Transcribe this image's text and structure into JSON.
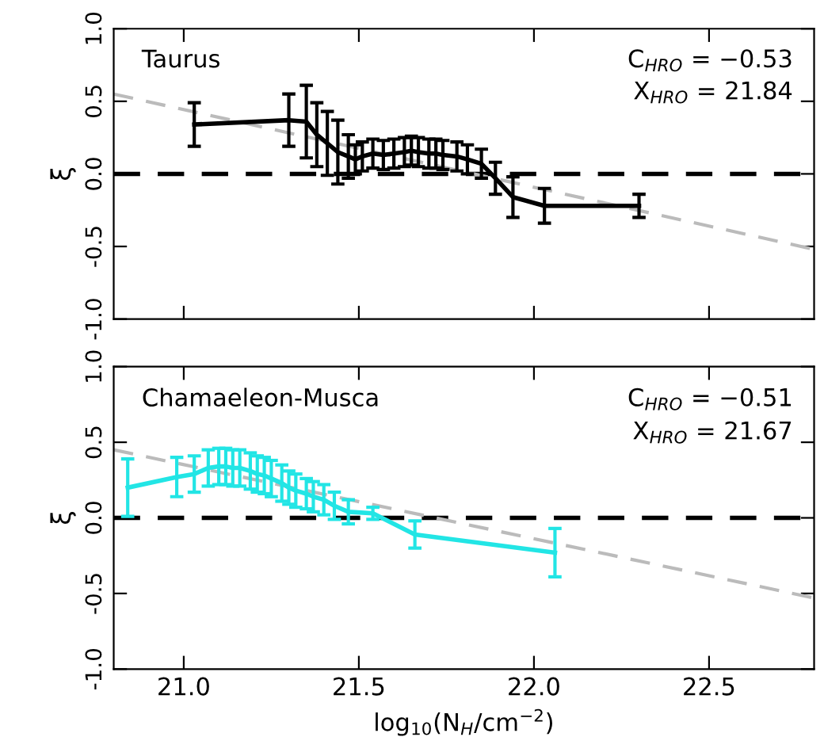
{
  "chart_data": [
    {
      "type": "line",
      "ylabel": "ξ",
      "xlim": [
        20.8,
        22.8
      ],
      "xticks": [
        {
          "value": 21,
          "label": null
        },
        {
          "value": 21.5,
          "label": null
        },
        {
          "value": 22,
          "label": null
        },
        {
          "value": 22.5,
          "label": null
        }
      ],
      "ylim": [
        -1.0,
        1.0
      ],
      "yticks": [
        {
          "value": -1,
          "label": "-1.0"
        },
        {
          "value": -0.5,
          "label": "-0.5"
        },
        {
          "value": 0,
          "label": "0.0"
        },
        {
          "value": 0.5,
          "label": "0.5"
        },
        {
          "value": 1,
          "label": "1.0"
        }
      ],
      "tick_labels": "y",
      "marker": "none",
      "annotations": [
        "Taurus",
        "C$_{HRO}$ = −0.53",
        "X$_{HRO}$ = 21.84"
      ],
      "ref_lines": [
        {
          "axis": "y",
          "value": 0,
          "label": null,
          "color": "#000000",
          "line_style": "dashed"
        }
      ],
      "series": [
        {
          "color": "#000000",
          "x": [
            21.03,
            21.3,
            21.35,
            21.38,
            21.41,
            21.44,
            21.47,
            21.49,
            21.51,
            21.54,
            21.57,
            21.6,
            21.63,
            21.65,
            21.67,
            21.7,
            21.72,
            21.74,
            21.78,
            21.81,
            21.85,
            21.89,
            21.94,
            22.03,
            22.3
          ],
          "values": [
            0.34,
            0.37,
            0.36,
            0.27,
            0.21,
            0.15,
            0.12,
            0.1,
            0.12,
            0.14,
            0.13,
            0.14,
            0.15,
            0.16,
            0.15,
            0.14,
            0.14,
            0.13,
            0.12,
            0.1,
            0.07,
            -0.03,
            -0.16,
            -0.22,
            -0.22
          ],
          "errors": [
            0.15,
            0.18,
            0.25,
            0.22,
            0.22,
            0.22,
            0.15,
            0.1,
            0.1,
            0.1,
            0.1,
            0.1,
            0.1,
            0.1,
            0.1,
            0.1,
            0.1,
            0.1,
            0.1,
            0.1,
            0.1,
            0.11,
            0.14,
            0.12,
            0.08
          ]
        },
        {
          "color": "#bbbbbb",
          "line_style": "dashed",
          "x": [
            20.8,
            22.8
          ],
          "values": [
            0.55,
            -0.52
          ]
        }
      ]
    },
    {
      "type": "line",
      "ylabel": "ξ",
      "xlabel": "log$_{10}$(N$_{H}$/cm$^{−2}$)",
      "xlim": [
        20.8,
        22.8
      ],
      "xticks": [
        {
          "value": 21,
          "label": "21.0"
        },
        {
          "value": 21.5,
          "label": "21.5"
        },
        {
          "value": 22,
          "label": "22.0"
        },
        {
          "value": 22.5,
          "label": "22.5"
        }
      ],
      "ylim": [
        -1.0,
        1.0
      ],
      "yticks": [
        {
          "value": -1,
          "label": "-1.0"
        },
        {
          "value": -0.5,
          "label": "-0.5"
        },
        {
          "value": 0,
          "label": "0.0"
        },
        {
          "value": 0.5,
          "label": "0.5"
        },
        {
          "value": 1,
          "label": "1.0"
        }
      ],
      "marker": "none",
      "annotations": [
        "Chamaeleon-Musca",
        "C$_{HRO}$ = −0.51",
        "X$_{HRO}$ = 21.67"
      ],
      "ref_lines": [
        {
          "axis": "y",
          "value": 0,
          "label": null,
          "color": "#000000",
          "line_style": "dashed"
        }
      ],
      "series": [
        {
          "color": "#22e5e5",
          "x": [
            20.84,
            20.98,
            21.03,
            21.07,
            21.1,
            21.12,
            21.14,
            21.16,
            21.19,
            21.21,
            21.23,
            21.25,
            21.28,
            21.3,
            21.32,
            21.35,
            21.37,
            21.4,
            21.43,
            21.47,
            21.54,
            21.66,
            22.06
          ],
          "values": [
            0.2,
            0.27,
            0.29,
            0.33,
            0.34,
            0.34,
            0.33,
            0.33,
            0.31,
            0.29,
            0.28,
            0.26,
            0.23,
            0.2,
            0.18,
            0.16,
            0.14,
            0.12,
            0.08,
            0.04,
            0.03,
            -0.11,
            -0.23
          ],
          "errors": [
            0.19,
            0.13,
            0.12,
            0.12,
            0.12,
            0.12,
            0.12,
            0.12,
            0.12,
            0.12,
            0.12,
            0.12,
            0.12,
            0.11,
            0.11,
            0.1,
            0.1,
            0.1,
            0.09,
            0.08,
            0.04,
            0.09,
            0.16
          ]
        },
        {
          "color": "#bbbbbb",
          "line_style": "dashed",
          "x": [
            20.8,
            22.8
          ],
          "values": [
            0.45,
            -0.53
          ]
        }
      ]
    }
  ]
}
